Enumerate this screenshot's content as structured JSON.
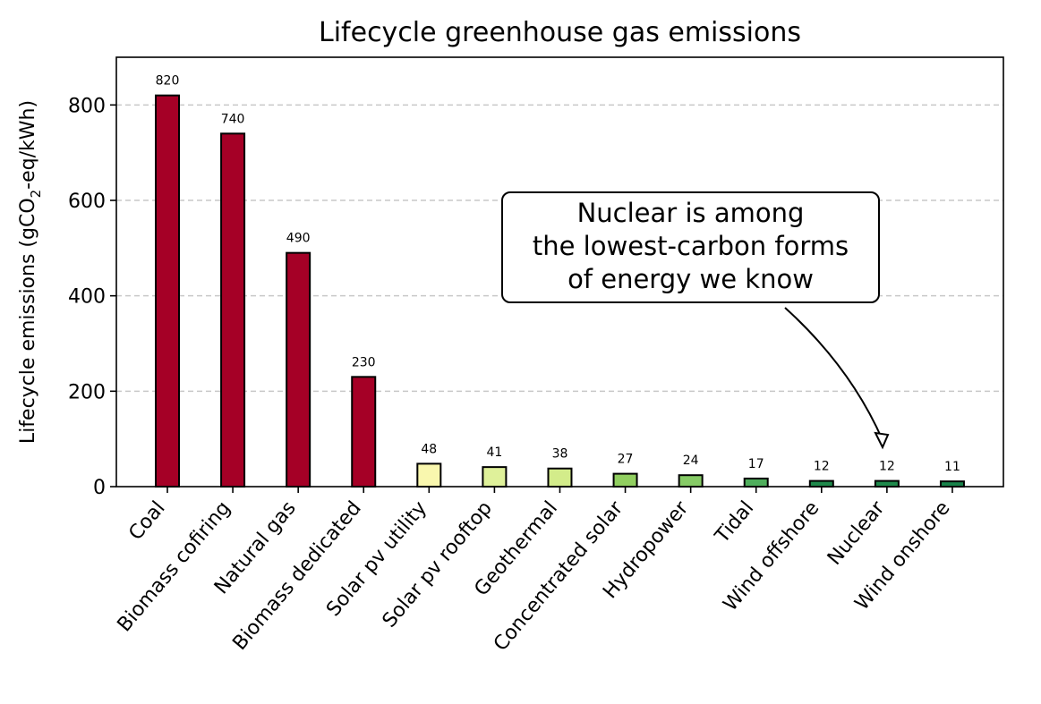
{
  "chart_data": {
    "type": "bar",
    "title": "Lifecycle greenhouse gas emissions",
    "xlabel": "",
    "ylabel_parts": [
      "Lifecycle emissions (gCO",
      "2",
      "-eq/kWh)"
    ],
    "categories": [
      "Coal",
      "Biomass cofiring",
      "Natural gas",
      "Biomass dedicated",
      "Solar pv utility",
      "Solar pv rooftop",
      "Geothermal",
      "Concentrated solar",
      "Hydropower",
      "Tidal",
      "Wind offshore",
      "Nuclear",
      "Wind onshore"
    ],
    "values": [
      820,
      740,
      490,
      230,
      48,
      41,
      38,
      27,
      24,
      17,
      12,
      12,
      11
    ],
    "bar_colors": [
      "#a50026",
      "#a50026",
      "#a50026",
      "#a50026",
      "#f9f7ae",
      "#dff19a",
      "#d3ec8a",
      "#91cf60",
      "#86cb66",
      "#4fae5c",
      "#1f8a4c",
      "#1f8a4c",
      "#18834a"
    ],
    "ylim": [
      0,
      900
    ],
    "yticks": [
      0,
      200,
      400,
      600,
      800
    ],
    "grid": "y-dashed",
    "annotation": {
      "lines": [
        "Nuclear is among",
        "the lowest-carbon forms",
        "of energy we know"
      ],
      "target_category": "Nuclear",
      "target_value": 80
    }
  }
}
